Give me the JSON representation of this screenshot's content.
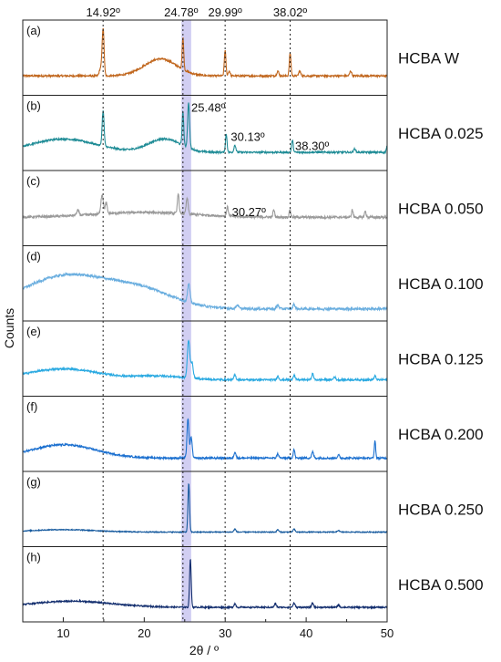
{
  "chart_data": {
    "type": "line",
    "xlabel": "2θ / º",
    "ylabel": "Counts",
    "xlim": [
      5,
      50
    ],
    "xticks": [
      10,
      20,
      30,
      40,
      50
    ],
    "highlight_band": {
      "from": 24.6,
      "to": 25.8,
      "color": "#c9c6f0"
    },
    "reference_lines": [
      {
        "x": 14.92,
        "label": "14.92º"
      },
      {
        "x": 24.78,
        "label": "24.78º"
      },
      {
        "x": 29.99,
        "label": "29.99º"
      },
      {
        "x": 38.02,
        "label": "38.02º"
      }
    ],
    "panels": [
      {
        "letter": "(a)",
        "name": "HCBA W",
        "color": "#c0651b",
        "baseline": 0.2,
        "noise": 0.015,
        "hump": [
          {
            "c": 22.0,
            "w": 2.0,
            "h": 0.28
          }
        ],
        "peaks": [
          {
            "x": 14.92,
            "h": 0.78,
            "w": 0.12
          },
          {
            "x": 14.6,
            "h": 0.12,
            "w": 0.15
          },
          {
            "x": 24.78,
            "h": 0.52,
            "w": 0.1
          },
          {
            "x": 29.99,
            "h": 0.42,
            "w": 0.1
          },
          {
            "x": 30.5,
            "h": 0.08,
            "w": 0.12
          },
          {
            "x": 36.5,
            "h": 0.08,
            "w": 0.12
          },
          {
            "x": 38.02,
            "h": 0.38,
            "w": 0.1
          },
          {
            "x": 39.2,
            "h": 0.08,
            "w": 0.12
          },
          {
            "x": 45.5,
            "h": 0.08,
            "w": 0.12
          }
        ],
        "annotations": []
      },
      {
        "letter": "(b)",
        "name": "HCBA 0.025",
        "color": "#1f8c96",
        "baseline": 0.18,
        "noise": 0.015,
        "hump": [
          {
            "c": 10,
            "w": 4,
            "h": 0.22
          },
          {
            "c": 22.5,
            "w": 2.0,
            "h": 0.22
          }
        ],
        "peaks": [
          {
            "x": 14.92,
            "h": 0.58,
            "w": 0.12
          },
          {
            "x": 24.78,
            "h": 0.55,
            "w": 0.1
          },
          {
            "x": 25.48,
            "h": 0.74,
            "w": 0.12
          },
          {
            "x": 30.13,
            "h": 0.3,
            "w": 0.1
          },
          {
            "x": 31.2,
            "h": 0.12,
            "w": 0.12
          },
          {
            "x": 38.3,
            "h": 0.2,
            "w": 0.1
          },
          {
            "x": 46,
            "h": 0.06,
            "w": 0.12
          },
          {
            "x": 50,
            "h": 0.1,
            "w": 0.1
          }
        ],
        "annotations": [
          {
            "label": "25.48º",
            "x": 25.48
          },
          {
            "label": "30.13º",
            "x": 30.13
          },
          {
            "label": "38.30º",
            "x": 38.3
          }
        ]
      },
      {
        "letter": "(c)",
        "name": "HCBA 0.050",
        "color": "#9a9a9a",
        "baseline": 0.35,
        "noise": 0.02,
        "hump": [
          {
            "c": 20,
            "w": 6,
            "h": 0.08
          }
        ],
        "peaks": [
          {
            "x": 11.8,
            "h": 0.08,
            "w": 0.15
          },
          {
            "x": 14.8,
            "h": 0.32,
            "w": 0.15
          },
          {
            "x": 15.3,
            "h": 0.18,
            "w": 0.12
          },
          {
            "x": 24.2,
            "h": 0.34,
            "w": 0.1
          },
          {
            "x": 25.3,
            "h": 0.26,
            "w": 0.12
          },
          {
            "x": 30.27,
            "h": 0.16,
            "w": 0.1
          },
          {
            "x": 36.0,
            "h": 0.12,
            "w": 0.1
          },
          {
            "x": 38.0,
            "h": 0.12,
            "w": 0.1
          },
          {
            "x": 45.7,
            "h": 0.12,
            "w": 0.1
          },
          {
            "x": 47.3,
            "h": 0.1,
            "w": 0.1
          }
        ],
        "annotations": [
          {
            "label": "30.27º",
            "x": 30.27
          }
        ]
      },
      {
        "letter": "(d)",
        "name": "HCBA 0.100",
        "color": "#6aaedf",
        "baseline": 0.08,
        "noise": 0.02,
        "hump": [
          {
            "c": 10.5,
            "w": 5.5,
            "h": 0.55
          },
          {
            "c": 20,
            "w": 4,
            "h": 0.25
          }
        ],
        "peaks": [
          {
            "x": 25.5,
            "h": 0.3,
            "w": 0.15
          },
          {
            "x": 31.5,
            "h": 0.06,
            "w": 0.15
          },
          {
            "x": 36.5,
            "h": 0.06,
            "w": 0.15
          },
          {
            "x": 38.5,
            "h": 0.08,
            "w": 0.12
          }
        ],
        "annotations": []
      },
      {
        "letter": "(e)",
        "name": "HCBA 0.125",
        "color": "#29a9e1",
        "baseline": 0.15,
        "noise": 0.015,
        "hump": [
          {
            "c": 10,
            "w": 4.5,
            "h": 0.18
          },
          {
            "c": 22,
            "w": 3,
            "h": 0.06
          }
        ],
        "peaks": [
          {
            "x": 25.48,
            "h": 0.62,
            "w": 0.15
          },
          {
            "x": 25.9,
            "h": 0.25,
            "w": 0.15
          },
          {
            "x": 31.2,
            "h": 0.08,
            "w": 0.12
          },
          {
            "x": 36.5,
            "h": 0.06,
            "w": 0.12
          },
          {
            "x": 38.5,
            "h": 0.08,
            "w": 0.12
          },
          {
            "x": 40.8,
            "h": 0.1,
            "w": 0.12
          },
          {
            "x": 43.5,
            "h": 0.05,
            "w": 0.12
          },
          {
            "x": 48.5,
            "h": 0.06,
            "w": 0.12
          }
        ],
        "annotations": []
      },
      {
        "letter": "(f)",
        "name": "HCBA 0.200",
        "color": "#1a6fcf",
        "baseline": 0.1,
        "noise": 0.015,
        "hump": [
          {
            "c": 10,
            "w": 4,
            "h": 0.22
          }
        ],
        "peaks": [
          {
            "x": 25.4,
            "h": 0.65,
            "w": 0.12
          },
          {
            "x": 25.8,
            "h": 0.35,
            "w": 0.12
          },
          {
            "x": 31.2,
            "h": 0.1,
            "w": 0.12
          },
          {
            "x": 36.5,
            "h": 0.07,
            "w": 0.12
          },
          {
            "x": 38.5,
            "h": 0.14,
            "w": 0.1
          },
          {
            "x": 40.8,
            "h": 0.1,
            "w": 0.12
          },
          {
            "x": 44,
            "h": 0.05,
            "w": 0.12
          },
          {
            "x": 48.5,
            "h": 0.3,
            "w": 0.08
          }
        ],
        "annotations": []
      },
      {
        "letter": "(g)",
        "name": "HCBA 0.250",
        "color": "#165a9e",
        "baseline": 0.12,
        "noise": 0.008,
        "hump": [
          {
            "c": 10,
            "w": 4,
            "h": 0.04
          }
        ],
        "peaks": [
          {
            "x": 25.5,
            "h": 0.8,
            "w": 0.1
          },
          {
            "x": 31.2,
            "h": 0.05,
            "w": 0.12
          },
          {
            "x": 36.5,
            "h": 0.04,
            "w": 0.12
          },
          {
            "x": 38.5,
            "h": 0.05,
            "w": 0.12
          },
          {
            "x": 44,
            "h": 0.03,
            "w": 0.12
          }
        ],
        "annotations": []
      },
      {
        "letter": "(h)",
        "name": "HCBA 0.500",
        "color": "#132e6e",
        "baseline": 0.12,
        "noise": 0.012,
        "hump": [
          {
            "c": 11,
            "w": 5,
            "h": 0.1
          }
        ],
        "peaks": [
          {
            "x": 25.7,
            "h": 0.8,
            "w": 0.1
          },
          {
            "x": 31.2,
            "h": 0.06,
            "w": 0.12
          },
          {
            "x": 36.2,
            "h": 0.06,
            "w": 0.12
          },
          {
            "x": 38.5,
            "h": 0.07,
            "w": 0.12
          },
          {
            "x": 40.8,
            "h": 0.07,
            "w": 0.12
          },
          {
            "x": 44,
            "h": 0.04,
            "w": 0.12
          }
        ],
        "annotations": []
      }
    ]
  }
}
